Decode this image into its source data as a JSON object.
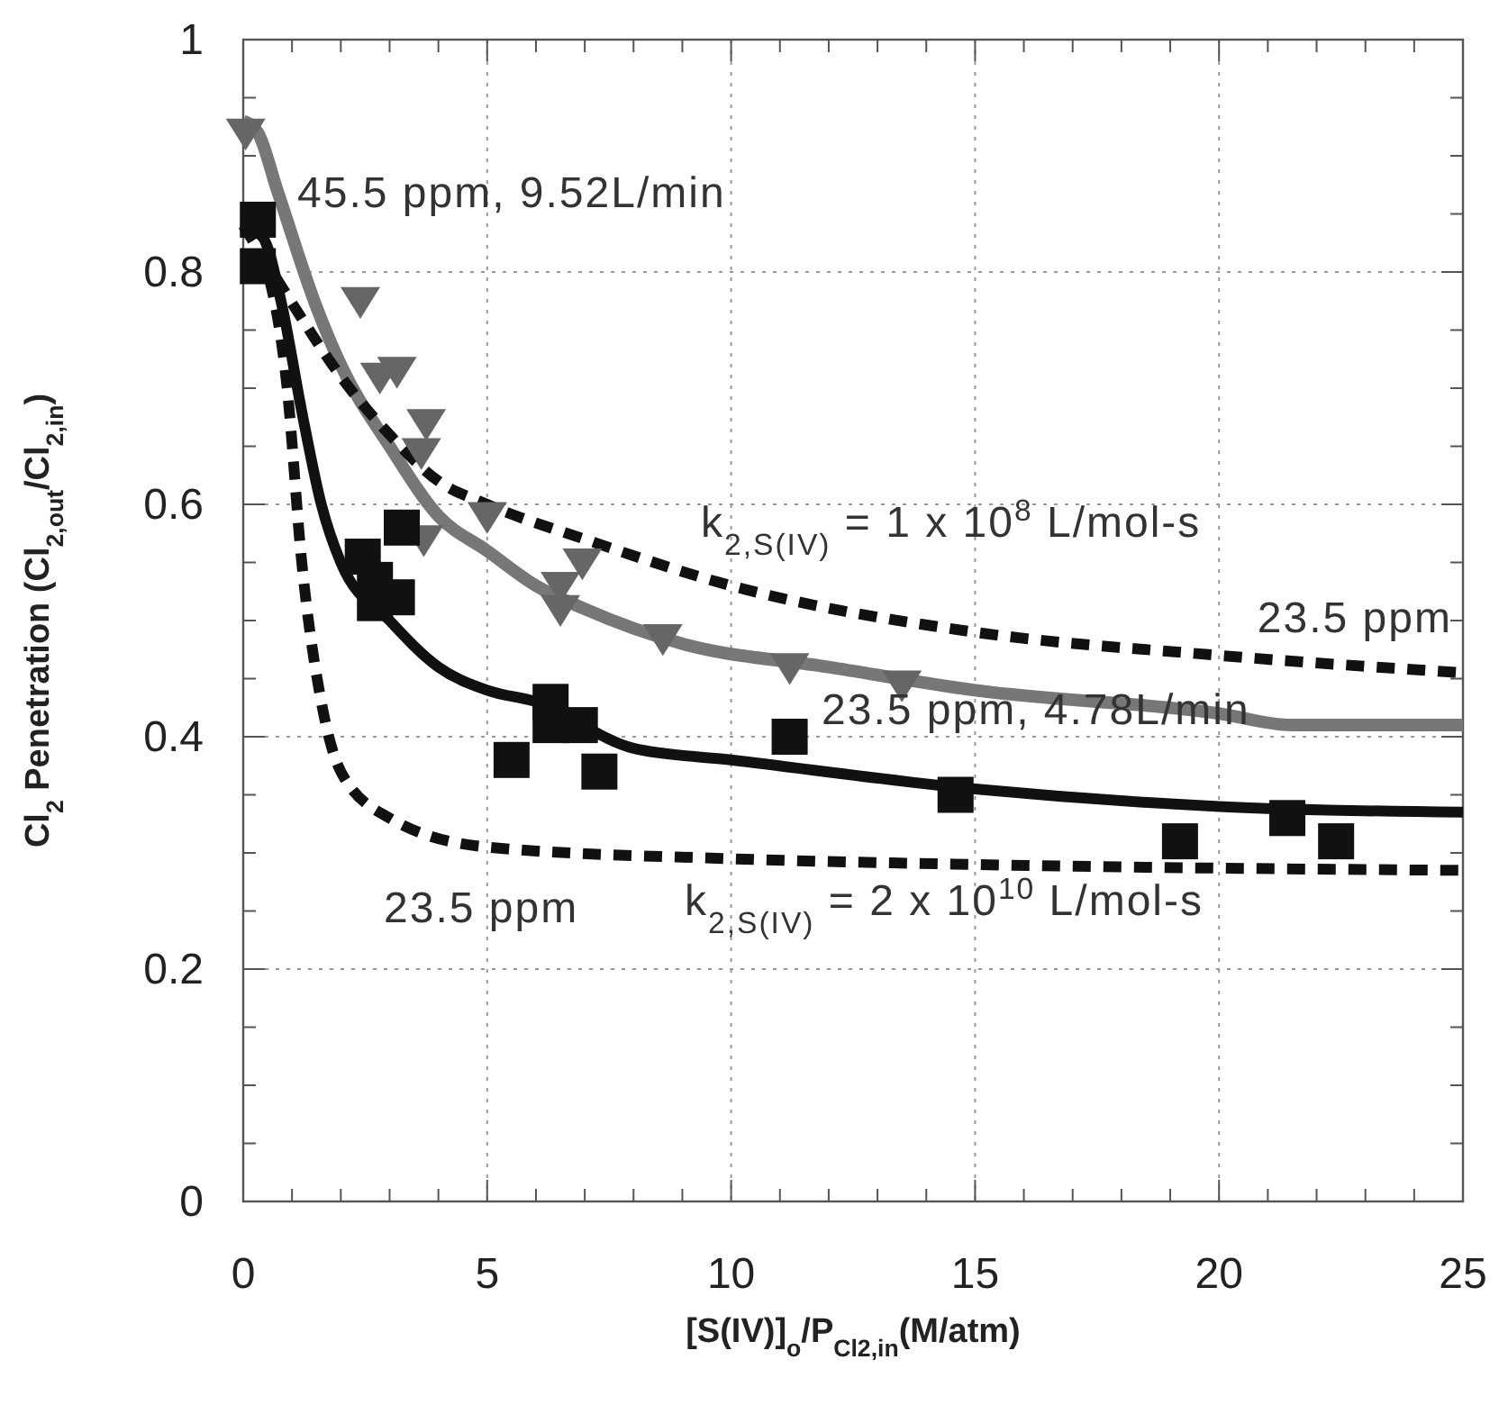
{
  "chart_data": {
    "type": "line",
    "xlabel": "[S(IV)]$_{o}$/P$_{Cl2,in}$(M/atm)",
    "ylabel": "Cl$_{2}$ Penetration (Cl$_{2,out}$/Cl$_{2,in}$)",
    "xlim": [
      0,
      25
    ],
    "ylim": [
      0,
      1
    ],
    "xticks": [
      0,
      {
        "value": 1,
        "label": null
      },
      {
        "value": 2,
        "label": null
      },
      {
        "value": 3,
        "label": null
      },
      {
        "value": 4,
        "label": null
      },
      5,
      {
        "value": 6,
        "label": null
      },
      {
        "value": 7,
        "label": null
      },
      {
        "value": 8,
        "label": null
      },
      {
        "value": 9,
        "label": null
      },
      10,
      {
        "value": 11,
        "label": null
      },
      {
        "value": 12,
        "label": null
      },
      {
        "value": 13,
        "label": null
      },
      {
        "value": 14,
        "label": null
      },
      15,
      {
        "value": 16,
        "label": null
      },
      {
        "value": 17,
        "label": null
      },
      {
        "value": 18,
        "label": null
      },
      {
        "value": 19,
        "label": null
      },
      20,
      {
        "value": 21,
        "label": null
      },
      {
        "value": 22,
        "label": null
      },
      {
        "value": 23,
        "label": null
      },
      {
        "value": 24,
        "label": null
      },
      25
    ],
    "yticks": [
      0,
      {
        "value": 0.05,
        "label": null
      },
      {
        "value": 0.1,
        "label": null
      },
      {
        "value": 0.15,
        "label": null
      },
      0.2,
      {
        "value": 0.25,
        "label": null
      },
      {
        "value": 0.3,
        "label": null
      },
      {
        "value": 0.35,
        "label": null
      },
      0.4,
      {
        "value": 0.45,
        "label": null
      },
      {
        "value": 0.5,
        "label": null
      },
      {
        "value": 0.55,
        "label": null
      },
      0.6,
      {
        "value": 0.65,
        "label": null
      },
      {
        "value": 0.7,
        "label": null
      },
      {
        "value": 0.75,
        "label": null
      },
      0.8,
      {
        "value": 0.85,
        "label": null
      },
      {
        "value": 0.9,
        "label": null
      },
      {
        "value": 0.95,
        "label": null
      },
      1
    ],
    "grid": true,
    "series": [
      {
        "color": "#777777",
        "line_style": "solid",
        "marker": "none",
        "x": [
          0,
          0.3,
          0.7,
          1.5,
          2,
          3,
          4,
          5,
          6,
          7,
          9,
          12,
          15,
          20,
          21.5,
          25
        ],
        "values": [
          0.93,
          0.92,
          0.87,
          0.77,
          0.72,
          0.65,
          0.59,
          0.56,
          0.53,
          0.51,
          0.48,
          0.46,
          0.44,
          0.42,
          0.41,
          0.41
        ]
      },
      {
        "color": "#111111",
        "line_style": "solid",
        "marker": "none",
        "x": [
          0,
          0.4,
          0.8,
          1.2,
          1.6,
          2,
          3,
          4,
          5,
          6,
          8,
          10,
          15,
          20,
          25
        ],
        "values": [
          0.84,
          0.83,
          0.77,
          0.68,
          0.6,
          0.55,
          0.5,
          0.46,
          0.44,
          0.43,
          0.39,
          0.38,
          0.355,
          0.34,
          0.335
        ]
      },
      {
        "color": "#111111",
        "line_style": "dashed",
        "marker": "none",
        "x": [
          0,
          0.6,
          1.2,
          2,
          3,
          4,
          5,
          7,
          10,
          15,
          20,
          25
        ],
        "values": [
          0.84,
          0.8,
          0.76,
          0.71,
          0.66,
          0.62,
          0.6,
          0.57,
          0.53,
          0.49,
          0.47,
          0.455
        ]
      },
      {
        "color": "#111111",
        "line_style": "dashed",
        "marker": "none",
        "x": [
          0,
          0.5,
          0.9,
          1.2,
          1.6,
          2,
          3,
          5,
          10,
          15,
          25
        ],
        "values": [
          0.84,
          0.8,
          0.7,
          0.55,
          0.43,
          0.37,
          0.33,
          0.305,
          0.295,
          0.29,
          0.285
        ]
      },
      {
        "type": "scatter",
        "color": "#666666",
        "marker": "triangle",
        "x": [
          0.05,
          2.4,
          2.8,
          3.15,
          3.75,
          3.65,
          3.7,
          5.0,
          6.95,
          6.5,
          6.5,
          8.6,
          11.2,
          13.5
        ],
        "values": [
          0.92,
          0.775,
          0.71,
          0.715,
          0.67,
          0.645,
          0.57,
          0.59,
          0.55,
          0.53,
          0.51,
          0.485,
          0.46,
          0.445
        ]
      },
      {
        "type": "scatter",
        "color": "#111111",
        "marker": "square",
        "x": [
          0.3,
          0.3,
          3.25,
          2.45,
          2.7,
          3.15,
          2.7,
          5.5,
          6.3,
          6.3,
          6.9,
          7.3,
          11.2,
          14.6,
          19.2,
          21.4,
          22.4
        ],
        "values": [
          0.845,
          0.805,
          0.58,
          0.555,
          0.535,
          0.52,
          0.515,
          0.38,
          0.43,
          0.41,
          0.41,
          0.37,
          0.4,
          0.35,
          0.31,
          0.33,
          0.31
        ]
      }
    ],
    "annotations": [
      "45.5 ppm, 9.52L/min",
      "k$_{2,S(IV)}$ = 1 x 10$^{8}$ L/mol-s",
      "23.5 ppm",
      "23.5 ppm, 4.78L/min",
      "23.5 ppm",
      "k$_{2,S(IV)}$ = 2 x 10$^{10}$ L/mol-s"
    ]
  }
}
